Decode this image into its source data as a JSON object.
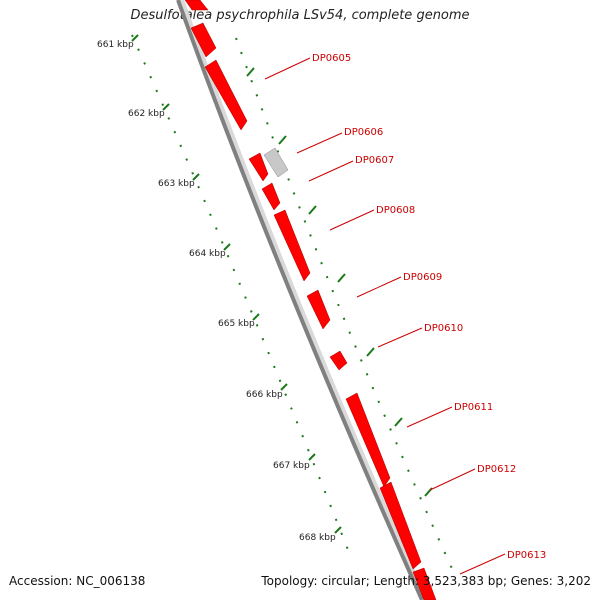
{
  "title": "Desulfotalea psychrophila LSv54, complete genome",
  "footer": {
    "accession": "Accession: NC_006138",
    "summary": "Topology: circular; Length: 3,523,383 bp; Genes: 3,202"
  },
  "colors": {
    "gene_forward": "#ff0000",
    "gene_other": "#c0c0c0",
    "backbone": "#808080",
    "tick": "#1a7a1a",
    "label": "#cc0000"
  },
  "scale_labels": [
    "661 kbp",
    "662 kbp",
    "663 kbp",
    "664 kbp",
    "665 kbp",
    "666 kbp",
    "667 kbp",
    "668 kbp"
  ],
  "genes": [
    {
      "name": "DP0605",
      "color": "red"
    },
    {
      "name": "DP0606",
      "color": "gray"
    },
    {
      "name": "DP0607",
      "color": "red"
    },
    {
      "name": "DP0608",
      "color": "red"
    },
    {
      "name": "DP0609",
      "color": "red"
    },
    {
      "name": "DP0610",
      "color": "red"
    },
    {
      "name": "DP0611",
      "color": "red"
    },
    {
      "name": "DP0612",
      "color": "red"
    },
    {
      "name": "DP0613",
      "color": "red"
    }
  ]
}
